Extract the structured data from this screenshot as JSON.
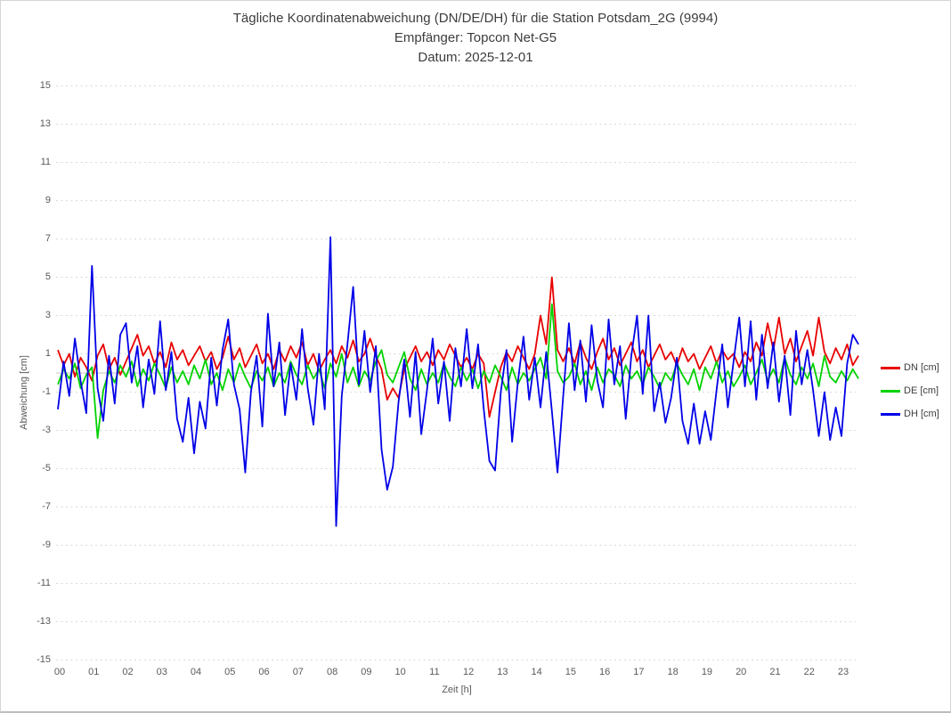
{
  "title": {
    "line1": "Tägliche Koordinatenabweichung (DN/DE/DH) für die Station Potsdam_2G (9994)",
    "line2": "Empfänger: Topcon Net-G5",
    "line3": "Datum: 2025-12-01"
  },
  "chart_data": {
    "type": "line",
    "title": "Tägliche Koordinatenabweichung (DN/DE/DH) für die Station Potsdam_2G (9994)",
    "subtitle1": "Empfänger: Topcon Net-G5",
    "subtitle2": "Datum: 2025-12-01",
    "xlabel": "Zeit [h]",
    "ylabel": "Abweichung [cm]",
    "xlim": [
      0,
      24
    ],
    "ylim": [
      -15,
      15
    ],
    "x_ticks": [
      "00",
      "01",
      "02",
      "03",
      "04",
      "05",
      "06",
      "07",
      "08",
      "09",
      "10",
      "11",
      "12",
      "13",
      "14",
      "15",
      "16",
      "17",
      "18",
      "19",
      "20",
      "21",
      "22",
      "23"
    ],
    "y_ticks": [
      15,
      13,
      11,
      9,
      7,
      5,
      3,
      1,
      -1,
      -3,
      -5,
      -7,
      -9,
      -11,
      -13,
      -15
    ],
    "grid": "horizontal dotted, solid zero line",
    "grid_color": "#d9d9d9",
    "zero_line_color": "#c6c6c6",
    "legend_position": "right",
    "x_start_hours": 0,
    "x_step_hours": 0.166667,
    "x_end_hours": 23.5,
    "series": [
      {
        "name": "DN [cm]",
        "color": "#e80000",
        "values": [
          1.2,
          0.4,
          1.0,
          -0.2,
          0.8,
          0.3,
          -0.4,
          0.9,
          1.5,
          0.2,
          0.8,
          -0.1,
          0.6,
          1.3,
          2.0,
          0.9,
          1.4,
          0.5,
          1.1,
          0.3,
          1.6,
          0.7,
          1.2,
          0.4,
          0.9,
          1.4,
          0.6,
          1.1,
          0.2,
          0.8,
          1.9,
          0.7,
          1.3,
          0.3,
          0.9,
          1.5,
          0.5,
          1.0,
          0.2,
          1.2,
          0.6,
          1.4,
          0.8,
          1.6,
          0.4,
          1.0,
          0.1,
          0.7,
          1.2,
          0.5,
          1.4,
          0.8,
          1.7,
          0.6,
          1.0,
          1.8,
          0.9,
          0.2,
          -1.4,
          -0.8,
          -1.3,
          0.2,
          0.8,
          1.4,
          0.6,
          1.1,
          0.4,
          1.2,
          0.7,
          1.5,
          0.9,
          0.3,
          0.8,
          0.2,
          1.0,
          0.5,
          -2.3,
          -1.0,
          0.3,
          1.1,
          0.6,
          1.4,
          0.8,
          0.2,
          1.0,
          3.0,
          1.5,
          5.0,
          1.2,
          0.6,
          1.3,
          0.5,
          1.6,
          0.8,
          0.2,
          1.1,
          1.8,
          0.7,
          1.3,
          0.4,
          1.0,
          1.6,
          0.6,
          1.2,
          0.3,
          0.9,
          1.5,
          0.7,
          1.1,
          0.4,
          1.3,
          0.6,
          1.0,
          0.2,
          0.8,
          1.4,
          0.5,
          1.2,
          0.7,
          1.0,
          0.3,
          1.1,
          0.6,
          1.6,
          0.9,
          2.6,
          1.2,
          2.9,
          1.0,
          1.8,
          0.6,
          1.4,
          2.2,
          0.9,
          2.9,
          1.1,
          0.5,
          1.3,
          0.7,
          1.5,
          0.4,
          0.9
        ]
      },
      {
        "name": "DE [cm]",
        "color": "#00d200",
        "values": [
          -0.6,
          0.2,
          -0.3,
          0.5,
          -0.8,
          -0.1,
          0.3,
          -3.4,
          -0.9,
          0.1,
          -0.5,
          0.4,
          -0.2,
          0.6,
          -0.7,
          0.2,
          -0.4,
          0.5,
          -0.1,
          -0.8,
          0.3,
          -0.5,
          0.1,
          -0.6,
          0.4,
          -0.3,
          0.7,
          -0.6,
          0.0,
          -0.9,
          0.2,
          -0.5,
          0.5,
          -0.2,
          -0.8,
          0.1,
          -0.4,
          0.3,
          -0.7,
          0.0,
          -0.5,
          0.6,
          -0.1,
          -0.6,
          0.4,
          -0.3,
          0.2,
          -0.8,
          0.5,
          -0.2,
          1.0,
          -0.5,
          0.3,
          -0.7,
          0.1,
          -0.4,
          0.6,
          1.2,
          -0.1,
          -0.5,
          0.3,
          1.1,
          -0.3,
          -0.9,
          0.2,
          -0.6,
          0.0,
          -0.5,
          0.5,
          -0.2,
          -0.7,
          0.3,
          -0.4,
          0.2,
          -0.8,
          0.1,
          -0.5,
          0.4,
          -0.2,
          -0.9,
          0.3,
          -0.6,
          0.0,
          -0.4,
          0.2,
          0.8,
          -0.3,
          3.6,
          0.1,
          -0.5,
          -0.2,
          0.5,
          -0.6,
          0.1,
          -0.9,
          0.3,
          -0.5,
          0.2,
          -0.1,
          -0.7,
          0.4,
          -0.3,
          0.1,
          -0.6,
          0.3,
          -0.2,
          -0.8,
          0.0,
          -0.4,
          0.5,
          -0.1,
          -0.6,
          0.2,
          -0.9,
          0.3,
          -0.3,
          0.6,
          -0.5,
          0.1,
          -0.7,
          -0.2,
          0.4,
          -0.6,
          0.0,
          0.7,
          -0.4,
          0.2,
          -0.5,
          0.8,
          -0.1,
          -0.6,
          0.3,
          -0.3,
          0.5,
          -0.7,
          0.9,
          -0.2,
          -0.5,
          0.1,
          -0.4,
          0.2,
          -0.3
        ]
      },
      {
        "name": "DH [cm]",
        "color": "#0000e8",
        "values": [
          -1.9,
          0.6,
          -1.2,
          1.8,
          -0.4,
          -2.1,
          5.6,
          -0.8,
          -2.5,
          0.9,
          -1.6,
          2.0,
          2.6,
          -0.5,
          1.4,
          -1.8,
          0.7,
          -1.1,
          2.7,
          -0.9,
          1.1,
          -2.4,
          -3.6,
          -1.3,
          -4.2,
          -1.5,
          -2.9,
          0.8,
          -1.7,
          1.2,
          2.8,
          -0.6,
          -1.9,
          -5.2,
          -1.0,
          0.9,
          -2.8,
          3.1,
          -0.7,
          1.6,
          -2.2,
          0.5,
          -1.4,
          2.3,
          -0.8,
          -2.7,
          1.0,
          -1.9,
          7.1,
          -8.0,
          -1.2,
          1.5,
          4.5,
          -0.6,
          2.2,
          -1.0,
          1.4,
          -4.0,
          -6.1,
          -4.9,
          -1.5,
          0.7,
          -2.3,
          1.1,
          -3.2,
          -0.9,
          1.8,
          -1.6,
          0.6,
          -2.5,
          1.3,
          -0.7,
          2.3,
          -0.8,
          1.5,
          -1.9,
          -4.6,
          -5.1,
          -1.0,
          1.2,
          -3.6,
          -0.5,
          1.9,
          -1.4,
          0.8,
          -1.8,
          1.1,
          -2.0,
          -5.2,
          -1.2,
          2.6,
          -0.9,
          1.7,
          -1.5,
          2.5,
          -0.4,
          -1.8,
          2.8,
          -0.6,
          1.4,
          -2.4,
          0.9,
          3.0,
          -1.1,
          3.0,
          -2.0,
          -0.5,
          -2.6,
          -1.3,
          0.8,
          -2.5,
          -3.7,
          -1.6,
          -3.7,
          -2.0,
          -3.5,
          -0.9,
          1.5,
          -1.8,
          0.6,
          2.9,
          -0.7,
          2.7,
          -1.4,
          2.0,
          -0.8,
          1.6,
          -1.5,
          0.9,
          -2.2,
          2.2,
          -0.6,
          1.2,
          -0.9,
          -3.3,
          -1.0,
          -3.5,
          -1.8,
          -3.3,
          0.5,
          2.0,
          1.5
        ]
      }
    ]
  }
}
